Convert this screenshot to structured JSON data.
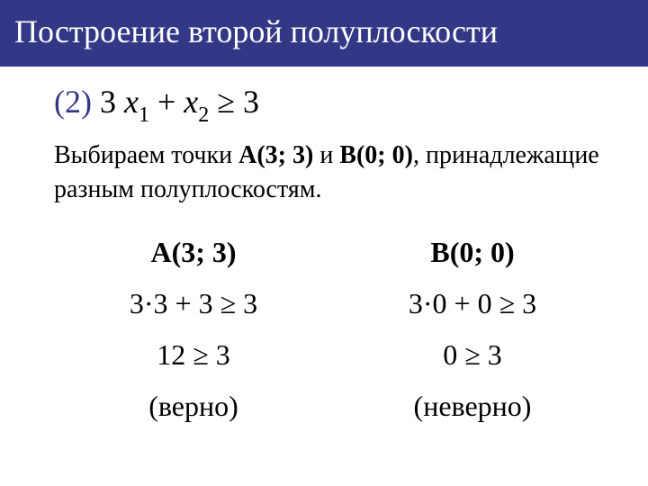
{
  "title": "Построение второй полуплоскости",
  "equation": {
    "number": "(2)",
    "text_before": " 3 ",
    "var1": "x",
    "sub1": "1",
    "plus": " + ",
    "var2": "x",
    "sub2": "2",
    "ge": " ≥ ",
    "rhs": "3"
  },
  "description": {
    "part1": "Выбираем точки ",
    "pointA": "A(3; 3)",
    "and": " и ",
    "pointB": "B(0; 0)",
    "part2": ", принадлежащие разным полуплоскостям."
  },
  "table": {
    "headers": {
      "a": "A(3; 3)",
      "b": "B(0; 0)"
    },
    "row1": {
      "a": "3·3 + 3 ≥ 3",
      "b": "3·0 + 0 ≥ 3"
    },
    "row2": {
      "a": "12 ≥ 3",
      "b": "0 ≥ 3"
    },
    "row3": {
      "a": "(верно)",
      "b": "(неверно)"
    }
  },
  "colors": {
    "title_bg": "#333886",
    "title_fg": "#ffffff",
    "body_bg": "#ffffff",
    "text": "#000000",
    "eq_num": "#333886"
  }
}
